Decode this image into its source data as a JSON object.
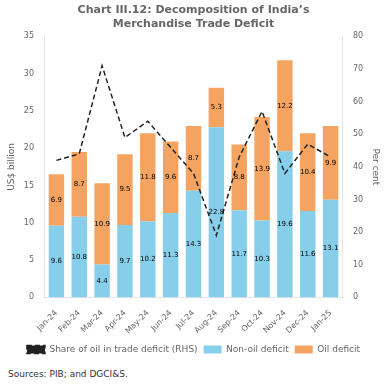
{
  "chart_data": {
    "type": "bar",
    "title": "Chart III.12: Decomposition of India’s\nMerchandise Trade Deficit",
    "categories": [
      "Jan-24",
      "Feb-24",
      "Mar-24",
      "Apr-24",
      "May-24",
      "Jun-24",
      "Jul-24",
      "Aug-24",
      "Sep-24",
      "Oct-24",
      "Nov-24",
      "Dec-24",
      "Jan-25"
    ],
    "series": [
      {
        "name": "Non-oil deficit",
        "color": "#87CEEB",
        "data_labels": true,
        "values": [
          9.6,
          10.8,
          4.4,
          9.7,
          10.2,
          11.3,
          14.3,
          22.8,
          11.7,
          10.3,
          19.6,
          11.6,
          13.1
        ]
      },
      {
        "name": "Oil deficit",
        "color": "#F4A460",
        "data_labels": true,
        "values": [
          6.9,
          8.7,
          10.9,
          9.5,
          11.8,
          9.6,
          8.7,
          5.3,
          8.8,
          13.9,
          12.2,
          10.4,
          9.9
        ]
      },
      {
        "name": "Share of oil in trade deficit (RHS)",
        "type": "line",
        "axis": "y2",
        "color": "#222222",
        "line_style": "dashed",
        "marker": "none",
        "values": [
          42,
          44,
          71,
          49,
          54,
          46,
          38,
          19,
          43,
          57,
          38,
          47,
          43
        ]
      }
    ],
    "stacked": true,
    "ylabel": "US$ billion",
    "y2label": "Per cent",
    "ylim": [
      0,
      35
    ],
    "yticks": [
      0,
      5,
      10,
      15,
      20,
      25,
      30,
      35
    ],
    "y2lim": [
      0,
      80
    ],
    "y2ticks": [
      0,
      10,
      20,
      30,
      40,
      50,
      60,
      70,
      80
    ],
    "grid": false,
    "legend": "bottom",
    "annotations": [
      "Sources: PIB; and DGCI&S."
    ]
  }
}
